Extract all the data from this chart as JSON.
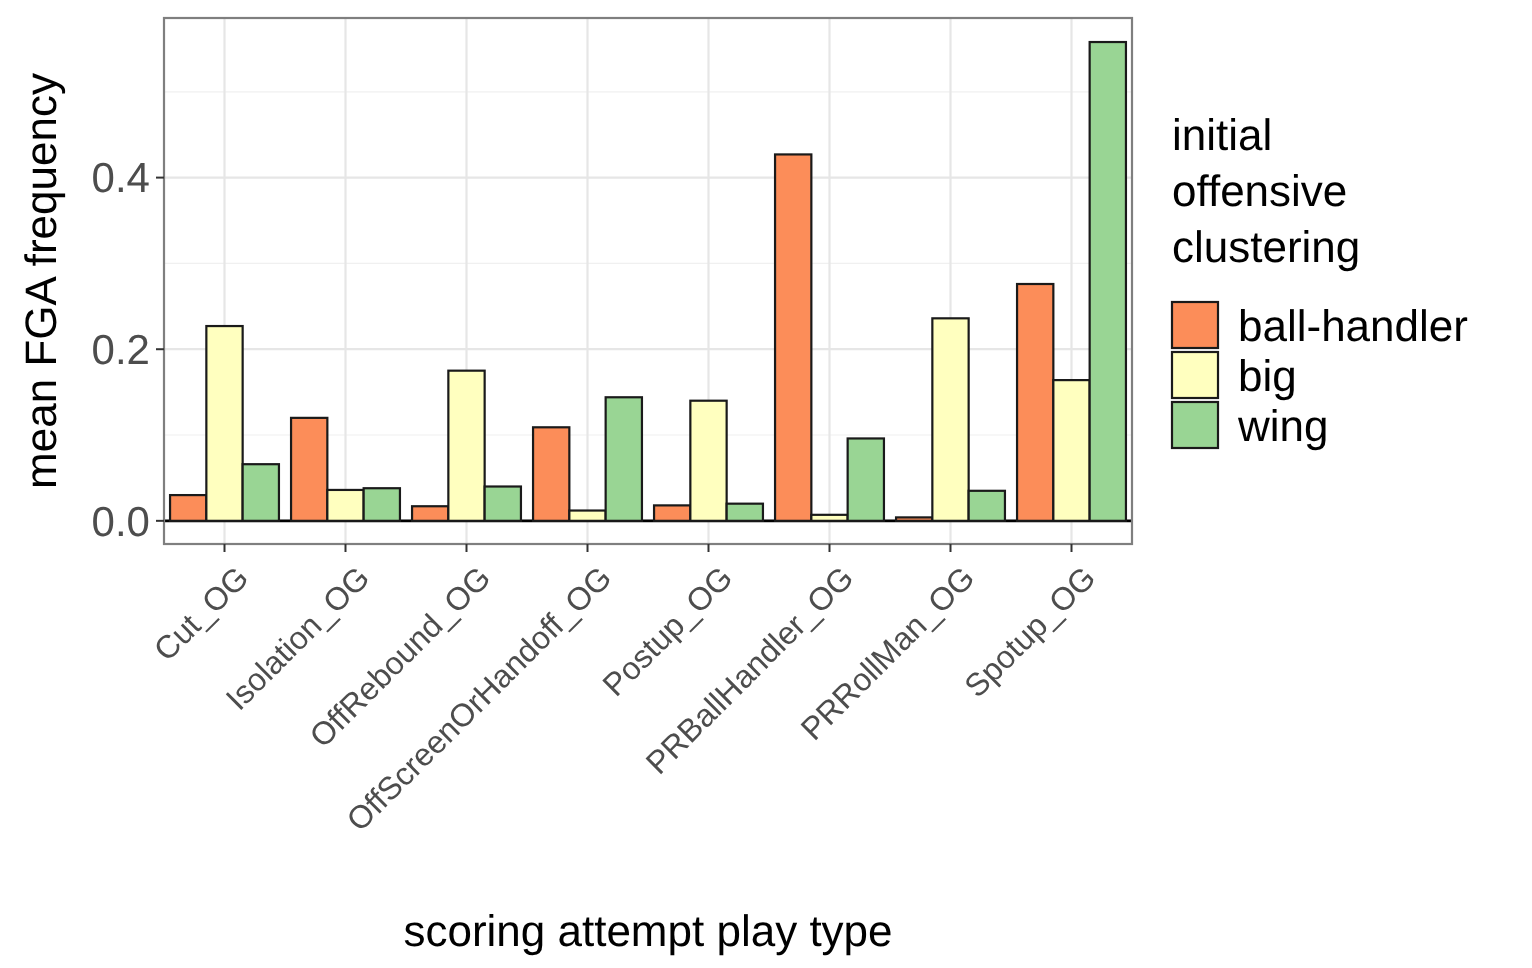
{
  "chart_data": {
    "type": "bar",
    "xlabel": "scoring attempt play type",
    "ylabel": "mean FGA frequency",
    "legend_title": "initial offensive clustering",
    "categories": [
      "Cut_OG",
      "Isolation_OG",
      "OffRebound_OG",
      "OffScreenOrHandoff_OG",
      "Postup_OG",
      "PRBallHandler_OG",
      "PRRollMan_OG",
      "Spotup_OG"
    ],
    "series": [
      {
        "name": "ball-handler",
        "color": "#fc8d59",
        "values": [
          0.03,
          0.12,
          0.017,
          0.109,
          0.018,
          0.427,
          0.004,
          0.276
        ]
      },
      {
        "name": "big",
        "color": "#ffffbf",
        "values": [
          0.227,
          0.036,
          0.175,
          0.012,
          0.14,
          0.007,
          0.236,
          0.164
        ]
      },
      {
        "name": "wing",
        "color": "#99d594",
        "values": [
          0.066,
          0.038,
          0.04,
          0.144,
          0.02,
          0.096,
          0.035,
          0.558
        ]
      }
    ],
    "ylim": [
      -0.027,
      0.586
    ],
    "yticks": [
      {
        "value": 0,
        "label": "0.0"
      },
      {
        "value": 0.2,
        "label": "0.2"
      },
      {
        "value": 0.4,
        "label": "0.4"
      }
    ],
    "grid": true,
    "legend": "right"
  }
}
